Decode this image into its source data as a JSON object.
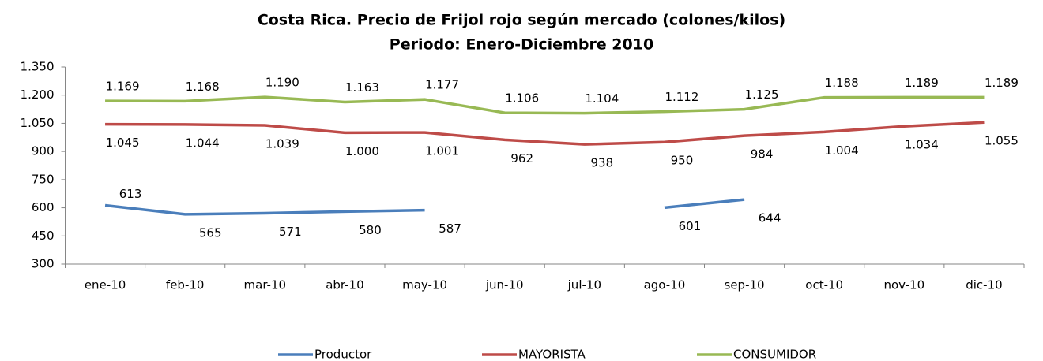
{
  "chart_data": {
    "type": "line",
    "title": "Costa Rica. Precio de Frijol rojo según mercado (colones/kilos)",
    "subtitle": "Periodo: Enero-Diciembre 2010",
    "categories": [
      "ene-10",
      "feb-10",
      "mar-10",
      "abr-10",
      "may-10",
      "jun-10",
      "jul-10",
      "ago-10",
      "sep-10",
      "oct-10",
      "nov-10",
      "dic-10"
    ],
    "series": [
      {
        "name": "Productor",
        "color": "#4a7ebb",
        "values": [
          613,
          565,
          571,
          580,
          587,
          null,
          null,
          601,
          644,
          null,
          null,
          null
        ]
      },
      {
        "name": "MAYORISTA",
        "color": "#be4b48",
        "values": [
          1045,
          1044,
          1039,
          1000,
          1001,
          962,
          938,
          950,
          984,
          1004,
          1034,
          1055
        ],
        "value_labels": [
          "1.045",
          "1.044",
          "1.039",
          "1.000",
          "1.001",
          "962",
          "938",
          "950",
          "984",
          "1.004",
          "1.034",
          "1.055"
        ]
      },
      {
        "name": "CONSUMIDOR",
        "color": "#98b954",
        "values": [
          1169,
          1168,
          1190,
          1163,
          1177,
          1106,
          1104,
          1112,
          1125,
          1188,
          1189,
          1189
        ],
        "value_labels": [
          "1.169",
          "1.168",
          "1.190",
          "1.163",
          "1.177",
          "1.106",
          "1.104",
          "1.112",
          "1.125",
          "1.188",
          "1.189",
          "1.189"
        ]
      }
    ],
    "ylim": [
      300,
      1350
    ],
    "yticks": [
      300,
      450,
      600,
      750,
      900,
      {
        "value": 1050,
        "label": "1.050"
      },
      {
        "value": 1200,
        "label": "1.200"
      },
      {
        "value": 1350,
        "label": "1.350"
      }
    ],
    "grid": false,
    "legend": "bottom"
  }
}
